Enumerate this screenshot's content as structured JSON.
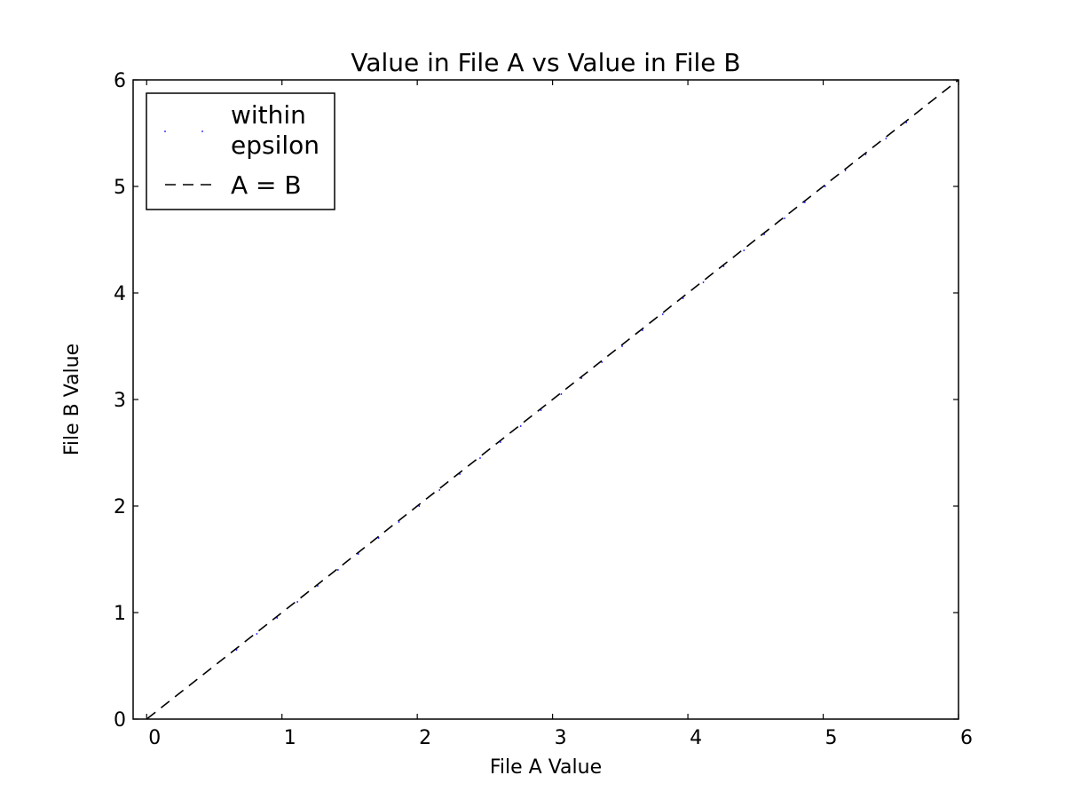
{
  "colors": {
    "background": "#ffffff",
    "axes": "#000000",
    "points": "#0000ff",
    "reference_line": "#000000"
  },
  "chart_data": {
    "type": "scatter",
    "title": "Value in File A vs Value in File B",
    "xlabel": "File A Value",
    "ylabel": "File B Value",
    "xlim": [
      -0.1,
      6
    ],
    "ylim": [
      0,
      6
    ],
    "xticks": [
      "0",
      "1",
      "2",
      "3",
      "4",
      "5",
      "6"
    ],
    "yticks": [
      "0",
      "1",
      "2",
      "3",
      "4",
      "5",
      "6"
    ],
    "grid": false,
    "legend": {
      "position": "top-left",
      "entries": [
        {
          "label_lines": [
            "within",
            "epsilon"
          ],
          "style": "point"
        },
        {
          "label_lines": [
            "A = B"
          ],
          "style": "dashed-line"
        }
      ]
    },
    "series": [
      {
        "name": "within epsilon",
        "style": "point",
        "color": "#0000ff",
        "x": [
          0.65,
          0.8,
          0.95,
          1.1,
          1.25,
          1.4,
          1.55,
          1.7,
          1.85,
          2.0,
          2.15,
          2.3,
          2.45,
          2.6,
          2.75,
          2.9,
          3.05,
          3.2,
          3.35,
          3.5,
          3.65,
          3.8,
          3.95,
          4.1,
          4.25,
          4.4,
          4.55,
          4.7,
          4.85,
          5.0,
          5.15,
          5.3,
          5.45,
          5.6
        ],
        "y": [
          0.65,
          0.8,
          0.95,
          1.1,
          1.25,
          1.4,
          1.55,
          1.7,
          1.85,
          2.0,
          2.15,
          2.3,
          2.45,
          2.6,
          2.75,
          2.9,
          3.05,
          3.2,
          3.35,
          3.5,
          3.65,
          3.8,
          3.95,
          4.1,
          4.25,
          4.4,
          4.55,
          4.7,
          4.85,
          5.0,
          5.15,
          5.3,
          5.45,
          5.6
        ]
      },
      {
        "name": "A = B",
        "style": "dashed-line",
        "color": "#000000",
        "x": [
          -0.1,
          6
        ],
        "y": [
          -0.1,
          6
        ]
      }
    ]
  }
}
